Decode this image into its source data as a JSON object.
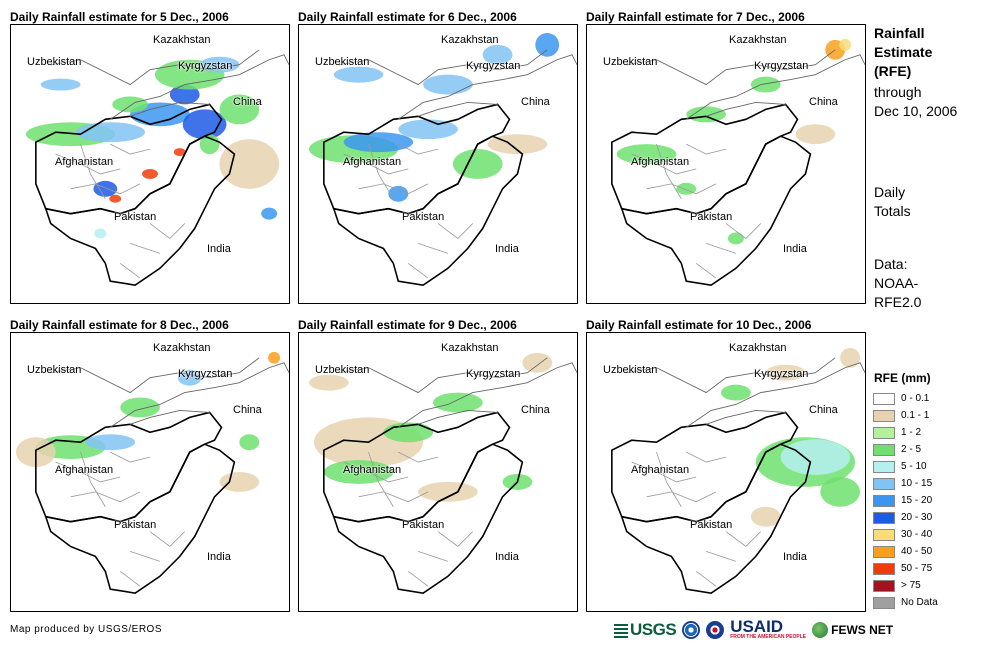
{
  "panels": [
    {
      "title": "Daily Rainfall estimate for 5 Dec., 2006"
    },
    {
      "title": "Daily Rainfall estimate for 6 Dec., 2006"
    },
    {
      "title": "Daily Rainfall estimate for 7 Dec., 2006"
    },
    {
      "title": "Daily Rainfall estimate for 8 Dec., 2006"
    },
    {
      "title": "Daily Rainfall estimate for 9 Dec., 2006"
    },
    {
      "title": "Daily Rainfall estimate for 10 Dec., 2006"
    }
  ],
  "places": {
    "kazakhstan": "Kazakhstan",
    "uzbekistan": "Uzbekistan",
    "kyrgyzstan": "Kyrgyzstan",
    "china": "China",
    "afghanistan": "Afghanistan",
    "pakistan": "Pakistan",
    "india": "India"
  },
  "sidebar": {
    "title_lines": [
      "Rainfall",
      "Estimate",
      "(RFE)"
    ],
    "subtitle_lines": [
      "through",
      "Dec 10, 2006"
    ],
    "daily_lines": [
      "Daily",
      "Totals"
    ],
    "data_lines": [
      "Data:",
      "NOAA-",
      "RFE2.0"
    ]
  },
  "legend": {
    "title": "RFE (mm)",
    "items": [
      {
        "label": "0 - 0.1",
        "color": "#ffffff"
      },
      {
        "label": "0.1 - 1",
        "color": "#e8d2b0"
      },
      {
        "label": "1 - 2",
        "color": "#b4f0a0"
      },
      {
        "label": "2 - 5",
        "color": "#6ee06e"
      },
      {
        "label": "5 - 10",
        "color": "#b4f0f0"
      },
      {
        "label": "10 - 15",
        "color": "#82c3f5"
      },
      {
        "label": "15 - 20",
        "color": "#3c96f0"
      },
      {
        "label": "20 - 30",
        "color": "#1e5ae6"
      },
      {
        "label": "30 - 40",
        "color": "#fadc78"
      },
      {
        "label": "40 - 50",
        "color": "#faa01e"
      },
      {
        "label": "50 - 75",
        "color": "#f03c0a"
      },
      {
        "label": "> 75",
        "color": "#a0141e"
      },
      {
        "label": "No Data",
        "color": "#a0a0a0"
      }
    ]
  },
  "credit": "Map produced by USGS/EROS",
  "logos": {
    "usgs": "USGS",
    "usaid": "USAID",
    "usaid_tagline": "FROM THE AMERICAN PEOPLE",
    "fews": "FEWS NET"
  }
}
